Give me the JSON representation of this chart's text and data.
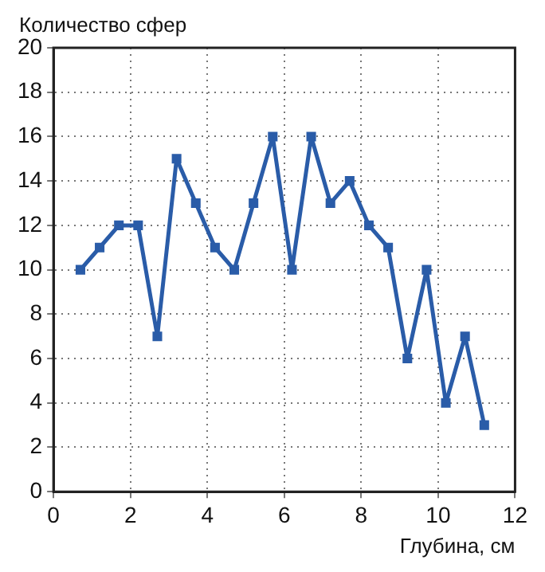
{
  "chart_data": {
    "type": "line",
    "xlabel": "Глубина, см",
    "ylabel": "Количество сфер",
    "x": [
      0.7,
      1.2,
      1.7,
      2.2,
      2.7,
      3.2,
      3.7,
      4.2,
      4.7,
      5.2,
      5.7,
      6.2,
      6.7,
      7.2,
      7.7,
      8.2,
      8.7,
      9.2,
      9.7,
      10.2,
      10.7,
      11.2
    ],
    "series": [
      {
        "color": "#2a5ca8",
        "values": [
          10,
          11,
          12,
          12,
          7,
          15,
          13,
          11,
          10,
          13,
          16,
          10,
          16,
          13,
          14,
          12,
          11,
          6,
          10,
          4,
          7,
          3
        ]
      }
    ],
    "xlim": [
      0,
      12
    ],
    "xticks": [
      0,
      2,
      4,
      6,
      8,
      10,
      12
    ],
    "ylim": [
      0,
      20
    ],
    "yticks": [
      0,
      2,
      4,
      6,
      8,
      10,
      12,
      14,
      16,
      18,
      20
    ],
    "grid": true,
    "legend": false,
    "marker": "square",
    "line_style": "solid"
  }
}
